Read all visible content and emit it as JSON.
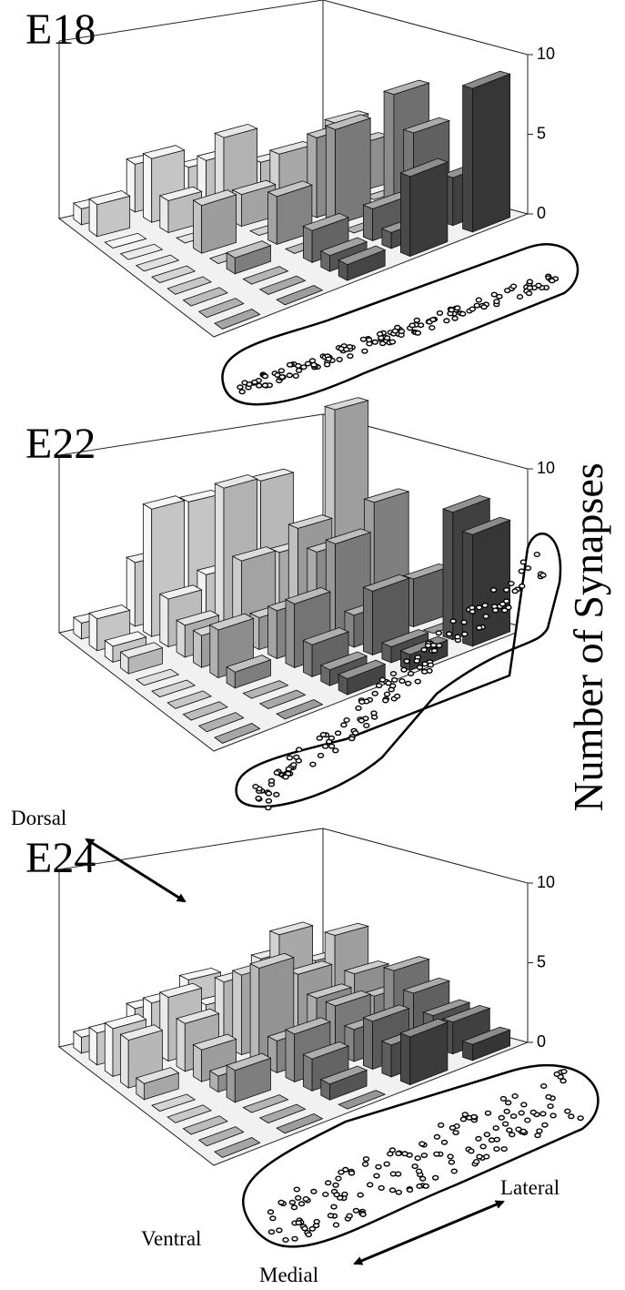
{
  "chart_data": [
    {
      "type": "bar3d",
      "title": "E18",
      "zlim": [
        0,
        10
      ],
      "zticks": [
        0,
        5,
        10
      ],
      "bar_colors": [
        "#f6f6f6",
        "#444444"
      ],
      "values": [
        [
          0,
          1,
          4,
          3,
          0,
          7,
          5,
          0,
          3,
          9
        ],
        [
          1,
          2,
          3,
          0,
          5,
          6,
          0,
          2,
          1,
          5
        ],
        [
          2,
          3,
          5,
          2,
          0,
          3,
          0,
          2,
          1,
          1
        ],
        [
          3,
          4,
          2,
          0,
          3,
          0,
          1,
          0,
          0,
          0
        ],
        [
          1,
          2,
          0,
          0,
          0,
          0,
          0,
          0,
          0,
          0
        ]
      ]
    },
    {
      "type": "bar3d",
      "title": "E22",
      "zlim": [
        0,
        10
      ],
      "zticks": [
        0,
        5,
        10
      ],
      "bar_colors": [
        "#f6f6f6",
        "#444444"
      ],
      "zlabel": "Number of Synapses",
      "values": [
        [
          2,
          4,
          12,
          3,
          7,
          0,
          3,
          0,
          8,
          7
        ],
        [
          3,
          8,
          4,
          6,
          5,
          6,
          2,
          4,
          1,
          1
        ],
        [
          7,
          3,
          9,
          5,
          2,
          3,
          4,
          2,
          1,
          1
        ],
        [
          4,
          8,
          3,
          2,
          2,
          3,
          1,
          0,
          0,
          0
        ],
        [
          1,
          2,
          1,
          1,
          0,
          0,
          0,
          0,
          0,
          0
        ]
      ]
    },
    {
      "type": "bar3d",
      "title": "E24",
      "zlim": [
        0,
        10
      ],
      "zticks": [
        0,
        5,
        10
      ],
      "bar_colors": [
        "#f6f6f6",
        "#444444"
      ],
      "annotations": [
        "Dorsal",
        "Ventral",
        "Lateral",
        "Medial"
      ],
      "values": [
        [
          1,
          3,
          5,
          3,
          2,
          4,
          3,
          2,
          2,
          1
        ],
        [
          2,
          4,
          6,
          4,
          3,
          3,
          2,
          3,
          2,
          3
        ],
        [
          3,
          2,
          4,
          5,
          6,
          2,
          3,
          2,
          1,
          0
        ],
        [
          2,
          3,
          4,
          3,
          2,
          1,
          2,
          0,
          0,
          0
        ],
        [
          1,
          2,
          3,
          3,
          1,
          0,
          0,
          0,
          0,
          0
        ]
      ]
    }
  ]
}
